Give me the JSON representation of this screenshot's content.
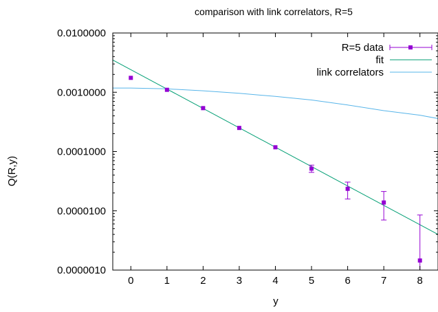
{
  "chart_data": {
    "type": "scatter",
    "title": "comparison with link correlators, R=5",
    "xlabel": "y",
    "ylabel": "Q(R,y)",
    "xlim": [
      -0.5,
      8.5
    ],
    "ylim": [
      1e-06,
      0.01
    ],
    "y_scale": "log",
    "x_ticks": [
      0,
      1,
      2,
      3,
      4,
      5,
      6,
      7,
      8
    ],
    "x_tick_labels": [
      "0",
      "1",
      "2",
      "3",
      "4",
      "5",
      "6",
      "7",
      "8"
    ],
    "y_ticks": [
      0.01,
      0.001,
      0.0001,
      1e-05,
      1e-06
    ],
    "y_tick_labels": [
      "0.0100000",
      "0.0010000",
      "0.0001000",
      "0.0000100",
      "0.0000010"
    ],
    "grid": false,
    "legend_position": "top-right",
    "series": [
      {
        "name": "R=5 data",
        "kind": "points_with_errorbars",
        "color": "#9400d3",
        "x": [
          0,
          1,
          2,
          3,
          4,
          5,
          6,
          7,
          8
        ],
        "y": [
          0.00175,
          0.0011,
          0.00054,
          0.00025,
          0.000118,
          5.15e-05,
          2.35e-05,
          1.38e-05,
          1.45e-06
        ],
        "y_low": [
          0.00175,
          0.0011,
          0.00054,
          0.00025,
          0.000118,
          4.45e-05,
          1.58e-05,
          7e-06,
          1e-06
        ],
        "y_high": [
          0.00175,
          0.0011,
          0.00054,
          0.00025,
          0.000118,
          5.9e-05,
          3.05e-05,
          2.12e-05,
          8.5e-06
        ]
      },
      {
        "name": "fit",
        "kind": "line",
        "color": "#009e73",
        "x": [
          -0.5,
          8.5
        ],
        "y": [
          0.0035,
          4e-06
        ]
      },
      {
        "name": "link correlators",
        "kind": "line",
        "color": "#56b4e9",
        "x": [
          -0.5,
          0,
          1,
          2,
          3,
          4,
          5,
          6,
          7,
          8,
          8.5
        ],
        "y": [
          0.00118,
          0.00118,
          0.00114,
          0.00106,
          0.00096,
          0.00085,
          0.00074,
          0.00061,
          0.00049,
          0.00041,
          0.00036
        ]
      }
    ]
  }
}
